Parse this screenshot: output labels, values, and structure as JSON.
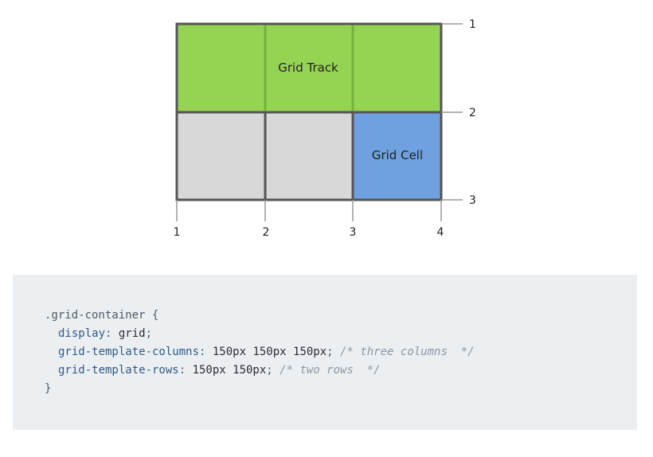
{
  "diagram": {
    "track_label": "Grid Track",
    "cell_label": "Grid Cell",
    "column_lines": [
      "1",
      "2",
      "3",
      "4"
    ],
    "row_lines": [
      "1",
      "2",
      "3"
    ],
    "colors": {
      "track_fill": "#95d452",
      "track_divider": "#74b23b",
      "cell_fill": "#6fa0df",
      "empty_fill": "#d8d8d8",
      "border": "#555555",
      "tick": "#999999"
    }
  },
  "code": {
    "selector": ".grid-container",
    "open_brace": "{",
    "close_brace": "}",
    "lines": [
      {
        "prop": "display",
        "value": "grid",
        "comment": ""
      },
      {
        "prop": "grid-template-columns",
        "value": "150px 150px 150px",
        "comment": "/* three columns  */"
      },
      {
        "prop": "grid-template-rows",
        "value": "150px 150px",
        "comment": "/* two rows  */"
      }
    ]
  }
}
